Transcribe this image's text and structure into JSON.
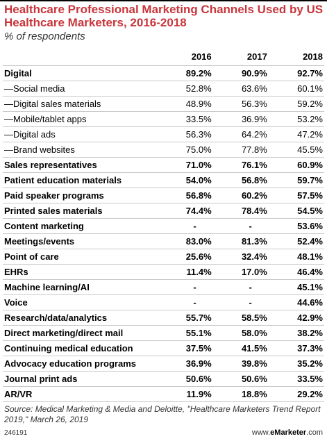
{
  "chart_data": {
    "type": "table",
    "title": "Healthcare Professional Marketing Channels Used by US Healthcare Marketers, 2016-2018",
    "subtitle": "% of respondents",
    "columns": [
      "2016",
      "2017",
      "2018"
    ],
    "rows": [
      {
        "label": "Digital",
        "values": [
          "89.2%",
          "90.9%",
          "92.7%"
        ],
        "bold": true
      },
      {
        "label": "—Social media",
        "values": [
          "52.8%",
          "63.6%",
          "60.1%"
        ],
        "bold": false
      },
      {
        "label": "—Digital sales materials",
        "values": [
          "48.9%",
          "56.3%",
          "59.2%"
        ],
        "bold": false
      },
      {
        "label": "—Mobile/tablet apps",
        "values": [
          "33.5%",
          "36.9%",
          "53.2%"
        ],
        "bold": false
      },
      {
        "label": "—Digital ads",
        "values": [
          "56.3%",
          "64.2%",
          "47.2%"
        ],
        "bold": false
      },
      {
        "label": "—Brand websites",
        "values": [
          "75.0%",
          "77.8%",
          "45.5%"
        ],
        "bold": false
      },
      {
        "label": "Sales representatives",
        "values": [
          "71.0%",
          "76.1%",
          "60.9%"
        ],
        "bold": true
      },
      {
        "label": "Patient education materials",
        "values": [
          "54.0%",
          "56.8%",
          "59.7%"
        ],
        "bold": true
      },
      {
        "label": "Paid speaker programs",
        "values": [
          "56.8%",
          "60.2%",
          "57.5%"
        ],
        "bold": true
      },
      {
        "label": "Printed sales materials",
        "values": [
          "74.4%",
          "78.4%",
          "54.5%"
        ],
        "bold": true
      },
      {
        "label": "Content marketing",
        "values": [
          "-",
          "-",
          "53.6%"
        ],
        "bold": true
      },
      {
        "label": "Meetings/events",
        "values": [
          "83.0%",
          "81.3%",
          "52.4%"
        ],
        "bold": true
      },
      {
        "label": "Point of care",
        "values": [
          "25.6%",
          "32.4%",
          "48.1%"
        ],
        "bold": true
      },
      {
        "label": "EHRs",
        "values": [
          "11.4%",
          "17.0%",
          "46.4%"
        ],
        "bold": true
      },
      {
        "label": "Machine learning/AI",
        "values": [
          "-",
          "-",
          "45.1%"
        ],
        "bold": true
      },
      {
        "label": "Voice",
        "values": [
          "-",
          "-",
          "44.6%"
        ],
        "bold": true
      },
      {
        "label": "Research/data/analytics",
        "values": [
          "55.7%",
          "58.5%",
          "42.9%"
        ],
        "bold": true
      },
      {
        "label": "Direct marketing/direct mail",
        "values": [
          "55.1%",
          "58.0%",
          "38.2%"
        ],
        "bold": true
      },
      {
        "label": "Continuing medical education",
        "values": [
          "37.5%",
          "41.5%",
          "37.3%"
        ],
        "bold": true
      },
      {
        "label": "Advocacy education programs",
        "values": [
          "36.9%",
          "39.8%",
          "35.2%"
        ],
        "bold": true
      },
      {
        "label": "Journal print ads",
        "values": [
          "50.6%",
          "50.6%",
          "33.5%"
        ],
        "bold": true
      },
      {
        "label": "AR/VR",
        "values": [
          "11.9%",
          "18.8%",
          "29.2%"
        ],
        "bold": true
      }
    ]
  },
  "source": "Source: Medical Marketing & Media and Deloitte, \"Healthcare Marketers Trend Report 2019,\" March 26, 2019",
  "footer": {
    "chart_id": "246191",
    "brand_prefix": "www.",
    "brand_name": "eMarketer",
    "brand_suffix": ".com"
  },
  "colors": {
    "title": "#c8353b",
    "rule": "#c9c9c9"
  }
}
